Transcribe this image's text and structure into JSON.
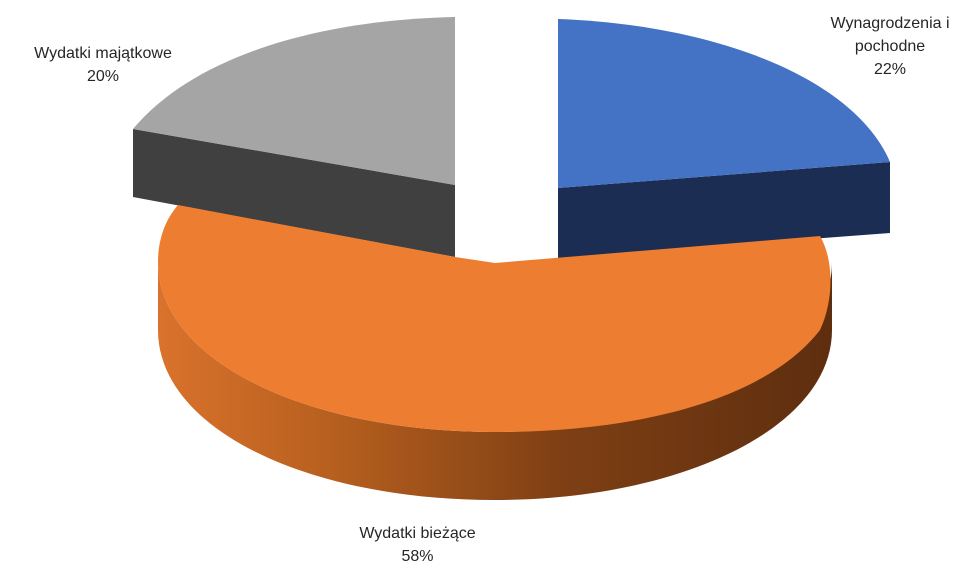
{
  "chart_data": {
    "type": "pie",
    "title": "",
    "slices": [
      {
        "label_line1": "Wynagrodzenia i",
        "label_line2": "pochodne",
        "value_label": "22%",
        "value": 22,
        "color_top": "#4472C4",
        "color_side": "#1B2D52"
      },
      {
        "label_line1": "Wydatki bieżące",
        "label_line2": "",
        "value_label": "58%",
        "value": 58,
        "color_top": "#ED7D31",
        "color_side": "#7A3F16"
      },
      {
        "label_line1": "Wydatki majątkowe",
        "label_line2": "",
        "value_label": "20%",
        "value": 20,
        "color_top": "#A5A5A5",
        "color_side": "#404040"
      }
    ],
    "legend": "none",
    "exploded": true
  }
}
